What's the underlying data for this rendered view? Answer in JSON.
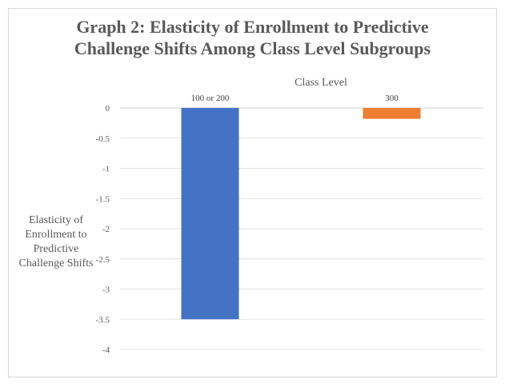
{
  "chart_data": {
    "type": "bar",
    "title_lines": [
      "Graph 2: Elasticity of Enrollment to Predictive",
      "Challenge Shifts Among Class Level Subgroups"
    ],
    "xlabel": "Class Level",
    "ylabel_lines": [
      "Elasticity of",
      "Enrollment to",
      "Predictive",
      "Challenge Shifts"
    ],
    "categories": [
      "100 or 200",
      "300"
    ],
    "values": [
      -3.5,
      -0.18
    ],
    "colors": [
      "#4472C4",
      "#ED7D31"
    ],
    "ylim": [
      -4,
      0
    ],
    "yticks": [
      0,
      -0.5,
      -1,
      -1.5,
      -2,
      -2.5,
      -3,
      -3.5,
      -4
    ],
    "ytick_labels": [
      "0",
      "-0.5",
      "-1",
      "-1.5",
      "-2",
      "-2.5",
      "-3",
      "-3.5",
      "-4"
    ],
    "grid": true,
    "category_axis_position": "top"
  }
}
